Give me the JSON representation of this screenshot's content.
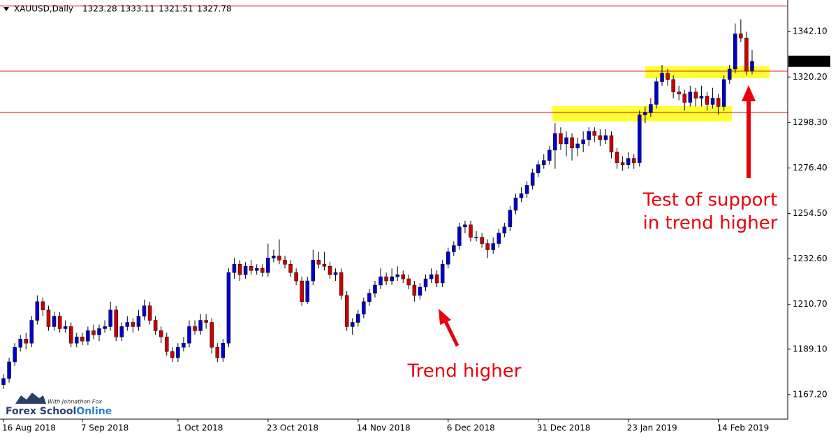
{
  "chart_data": {
    "type": "candlestick",
    "symbol": "XAUUSD,Daily",
    "ylim": [
      1155.4,
      1357.3
    ],
    "yticks": [
      {
        "value": 1167.2,
        "label": "1167.20"
      },
      {
        "value": 1189.1,
        "label": "1189.10"
      },
      {
        "value": 1210.7,
        "label": "1210.70"
      },
      {
        "value": 1232.6,
        "label": "1232.60"
      },
      {
        "value": 1254.5,
        "label": "1254.50"
      },
      {
        "value": 1276.4,
        "label": "1276.40"
      },
      {
        "value": 1298.3,
        "label": "1298.30"
      },
      {
        "value": 1320.2,
        "label": "1320.20"
      },
      {
        "value": 1342.1,
        "label": "1342.10"
      }
    ],
    "xticks": [
      {
        "value": 0,
        "label": "16 Aug 2018"
      },
      {
        "value": 14,
        "label": "7 Sep 2018"
      },
      {
        "value": 31,
        "label": "1 Oct 2018"
      },
      {
        "value": 47,
        "label": "23 Oct 2018"
      },
      {
        "value": 63,
        "label": "14 Nov 2018"
      },
      {
        "value": 79,
        "label": "6 Dec 2018"
      },
      {
        "value": 95,
        "label": "31 Dec 2018"
      },
      {
        "value": 111,
        "label": "23 Jan 2019"
      },
      {
        "value": 127,
        "label": "14 Feb 2019"
      }
    ],
    "up_color": "#0000cc",
    "down_color": "#cc0000",
    "level_color": "#d40000",
    "zone_color": "#ffff33",
    "levels": [
      1354.4,
      1323.0,
      1303.2
    ],
    "zones": [
      [
        1298.8,
        1306.2
      ],
      [
        1319.6,
        1325.4
      ]
    ],
    "annotations": [
      "Trend higher",
      "Test of support",
      "in trend higher"
    ],
    "logo": {
      "tagline": "With Johnathon Fox",
      "name": "Forex School",
      "name_accent": "Online"
    },
    "ohlc": [
      [
        1172,
        1177,
        1170,
        1175
      ],
      [
        1175,
        1185,
        1173,
        1183
      ],
      [
        1183,
        1192,
        1181,
        1190
      ],
      [
        1190,
        1196,
        1188,
        1194
      ],
      [
        1194,
        1197,
        1189,
        1192
      ],
      [
        1192,
        1205,
        1190,
        1203
      ],
      [
        1203,
        1215,
        1201,
        1212
      ],
      [
        1212,
        1214,
        1205,
        1208
      ],
      [
        1208,
        1210,
        1198,
        1200
      ],
      [
        1200,
        1207,
        1198,
        1205
      ],
      [
        1205,
        1207,
        1197,
        1199
      ],
      [
        1199,
        1203,
        1197,
        1200
      ],
      [
        1200,
        1202,
        1190,
        1192
      ],
      [
        1192,
        1197,
        1190,
        1195
      ],
      [
        1195,
        1197,
        1191,
        1193
      ],
      [
        1193,
        1200,
        1191,
        1198
      ],
      [
        1198,
        1201,
        1194,
        1196
      ],
      [
        1196,
        1201,
        1193,
        1199
      ],
      [
        1199,
        1203,
        1197,
        1200
      ],
      [
        1200,
        1212,
        1198,
        1208
      ],
      [
        1208,
        1210,
        1193,
        1195
      ],
      [
        1195,
        1202,
        1193,
        1200
      ],
      [
        1200,
        1205,
        1198,
        1202
      ],
      [
        1202,
        1204,
        1197,
        1200
      ],
      [
        1200,
        1208,
        1198,
        1205
      ],
      [
        1205,
        1213,
        1203,
        1210
      ],
      [
        1210,
        1212,
        1201,
        1203
      ],
      [
        1203,
        1205,
        1196,
        1198
      ],
      [
        1198,
        1200,
        1192,
        1195
      ],
      [
        1195,
        1197,
        1186,
        1188
      ],
      [
        1188,
        1190,
        1183,
        1185
      ],
      [
        1185,
        1192,
        1183,
        1190
      ],
      [
        1190,
        1195,
        1188,
        1192
      ],
      [
        1192,
        1203,
        1190,
        1200
      ],
      [
        1200,
        1203,
        1196,
        1198
      ],
      [
        1198,
        1206,
        1196,
        1203
      ],
      [
        1203,
        1206,
        1199,
        1202
      ],
      [
        1202,
        1204,
        1187,
        1190
      ],
      [
        1190,
        1192,
        1183,
        1185
      ],
      [
        1185,
        1194,
        1183,
        1192
      ],
      [
        1192,
        1228,
        1190,
        1226
      ],
      [
        1226,
        1233,
        1223,
        1230
      ],
      [
        1230,
        1232,
        1222,
        1225
      ],
      [
        1225,
        1231,
        1223,
        1229
      ],
      [
        1229,
        1232,
        1225,
        1227
      ],
      [
        1227,
        1230,
        1225,
        1228
      ],
      [
        1228,
        1230,
        1224,
        1226
      ],
      [
        1226,
        1240,
        1224,
        1233
      ],
      [
        1233,
        1237,
        1231,
        1234
      ],
      [
        1234,
        1242,
        1230,
        1232
      ],
      [
        1232,
        1234,
        1228,
        1230
      ],
      [
        1230,
        1232,
        1224,
        1226
      ],
      [
        1226,
        1228,
        1220,
        1222
      ],
      [
        1222,
        1224,
        1210,
        1212
      ],
      [
        1212,
        1224,
        1211,
        1222
      ],
      [
        1222,
        1237,
        1220,
        1232
      ],
      [
        1232,
        1236,
        1228,
        1230
      ],
      [
        1230,
        1236,
        1227,
        1229
      ],
      [
        1229,
        1231,
        1223,
        1225
      ],
      [
        1225,
        1228,
        1222,
        1226
      ],
      [
        1226,
        1228,
        1213,
        1215
      ],
      [
        1215,
        1217,
        1198,
        1200
      ],
      [
        1200,
        1204,
        1196,
        1202
      ],
      [
        1202,
        1208,
        1200,
        1206
      ],
      [
        1206,
        1214,
        1204,
        1212
      ],
      [
        1212,
        1218,
        1210,
        1216
      ],
      [
        1216,
        1222,
        1214,
        1220
      ],
      [
        1220,
        1228,
        1218,
        1224
      ],
      [
        1224,
        1226,
        1220,
        1222
      ],
      [
        1222,
        1228,
        1220,
        1224
      ],
      [
        1224,
        1229,
        1222,
        1225
      ],
      [
        1225,
        1227,
        1221,
        1223
      ],
      [
        1223,
        1225,
        1218,
        1220
      ],
      [
        1220,
        1222,
        1212,
        1215
      ],
      [
        1215,
        1221,
        1213,
        1219
      ],
      [
        1219,
        1225,
        1217,
        1223
      ],
      [
        1223,
        1228,
        1221,
        1225
      ],
      [
        1225,
        1227,
        1219,
        1221
      ],
      [
        1221,
        1232,
        1219,
        1230
      ],
      [
        1230,
        1238,
        1228,
        1236
      ],
      [
        1236,
        1241,
        1234,
        1239
      ],
      [
        1239,
        1250,
        1237,
        1248
      ],
      [
        1248,
        1251,
        1245,
        1249
      ],
      [
        1249,
        1251,
        1241,
        1243
      ],
      [
        1243,
        1246,
        1241,
        1243
      ],
      [
        1243,
        1245,
        1238,
        1240
      ],
      [
        1240,
        1242,
        1233,
        1237
      ],
      [
        1237,
        1243,
        1235,
        1240
      ],
      [
        1240,
        1247,
        1238,
        1245
      ],
      [
        1245,
        1250,
        1243,
        1248
      ],
      [
        1248,
        1258,
        1246,
        1256
      ],
      [
        1256,
        1264,
        1254,
        1262
      ],
      [
        1262,
        1267,
        1260,
        1264
      ],
      [
        1264,
        1270,
        1262,
        1268
      ],
      [
        1268,
        1276,
        1266,
        1274
      ],
      [
        1274,
        1280,
        1272,
        1278
      ],
      [
        1278,
        1283,
        1276,
        1280
      ],
      [
        1280,
        1287,
        1278,
        1285
      ],
      [
        1285,
        1298,
        1276,
        1293
      ],
      [
        1293,
        1296,
        1285,
        1288
      ],
      [
        1288,
        1294,
        1282,
        1291
      ],
      [
        1291,
        1293,
        1280,
        1286
      ],
      [
        1286,
        1291,
        1282,
        1288
      ],
      [
        1288,
        1294,
        1284,
        1290
      ],
      [
        1290,
        1296,
        1287,
        1294
      ],
      [
        1294,
        1296,
        1289,
        1292
      ],
      [
        1292,
        1295,
        1287,
        1290
      ],
      [
        1290,
        1295,
        1288,
        1292
      ],
      [
        1292,
        1294,
        1281,
        1284
      ],
      [
        1284,
        1286,
        1276,
        1279
      ],
      [
        1279,
        1282,
        1275,
        1278
      ],
      [
        1278,
        1284,
        1276,
        1281
      ],
      [
        1281,
        1283,
        1276,
        1279
      ],
      [
        1279,
        1304,
        1277,
        1302
      ],
      [
        1302,
        1306,
        1298,
        1303
      ],
      [
        1303,
        1310,
        1301,
        1307
      ],
      [
        1307,
        1320,
        1305,
        1318
      ],
      [
        1318,
        1326,
        1316,
        1322
      ],
      [
        1322,
        1324,
        1316,
        1319
      ],
      [
        1319,
        1321,
        1310,
        1313
      ],
      [
        1313,
        1316,
        1309,
        1312
      ],
      [
        1312,
        1314,
        1304,
        1308
      ],
      [
        1308,
        1316,
        1306,
        1313
      ],
      [
        1313,
        1315,
        1306,
        1310
      ],
      [
        1310,
        1316,
        1306,
        1311
      ],
      [
        1311,
        1313,
        1304,
        1307
      ],
      [
        1307,
        1315,
        1305,
        1310
      ],
      [
        1310,
        1312,
        1302,
        1306
      ],
      [
        1306,
        1321,
        1304,
        1319
      ],
      [
        1319,
        1326,
        1317,
        1324
      ],
      [
        1324,
        1346,
        1322,
        1341
      ],
      [
        1341,
        1348,
        1337,
        1339
      ],
      [
        1339,
        1342,
        1321,
        1323
      ],
      [
        1323.28,
        1333.11,
        1321.51,
        1327.78
      ]
    ]
  }
}
